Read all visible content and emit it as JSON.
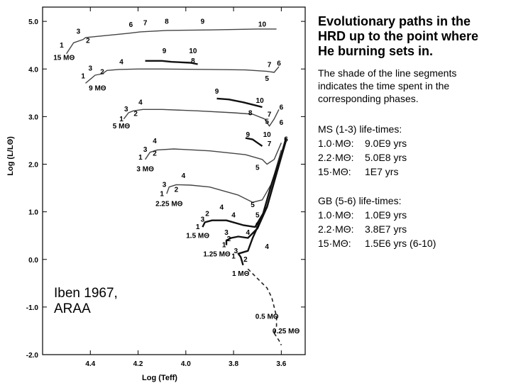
{
  "title": "Evolutionary paths in the\nHRD up to the point where\nHe burning sets in.",
  "note": "The shade of the line segments\nindicates the time spent in the\ncorresponding phases.",
  "ms_table": {
    "header": "MS (1-3) life-times:",
    "rows": [
      {
        "mass": "1.0·MΘ:",
        "value": "9.0E9 yrs"
      },
      {
        "mass": "2.2·MΘ:",
        "value": "5.0E8 yrs"
      },
      {
        "mass": "15·MΘ:",
        "value": "1E7 yrs"
      }
    ]
  },
  "gb_table": {
    "header": "GB (5-6) life-times:",
    "rows": [
      {
        "mass": "1.0·MΘ:",
        "value": "1.0E9 yrs"
      },
      {
        "mass": "2.2·MΘ:",
        "value": "3.8E7 yrs"
      },
      {
        "mass": "15·MΘ:",
        "value": "1.5E6 yrs (6-10)"
      }
    ]
  },
  "credit": "Iben 1967,\nARAA",
  "chart_data": {
    "type": "line",
    "xlabel": "Log (Teff)",
    "ylabel": "Log (L/LΘ)",
    "x_reversed": true,
    "xlim": [
      4.6,
      3.5
    ],
    "ylim": [
      -2.0,
      5.3
    ],
    "x_ticks": [
      4.4,
      4.2,
      4.0,
      3.8,
      3.6
    ],
    "x_tick_labels": [
      "4.4",
      "4.2",
      "4.0",
      "3.8",
      "3.6"
    ],
    "y_ticks": [
      5.0,
      4.0,
      3.0,
      2.0,
      1.0,
      0.0,
      -1.0,
      -2.0
    ],
    "y_tick_labels": [
      "5.0",
      "4.0",
      "3.0",
      "2.0",
      "1.0",
      "0.0",
      "-1.0",
      "-2.0"
    ],
    "series": [
      {
        "name": "15 MΘ",
        "points": [
          [
            4.5,
            4.32
          ],
          [
            4.47,
            4.55
          ],
          [
            4.43,
            4.62
          ],
          [
            4.42,
            4.66
          ],
          [
            4.36,
            4.69
          ],
          [
            4.24,
            4.75
          ],
          [
            4.19,
            4.78
          ],
          [
            4.08,
            4.81
          ],
          [
            3.9,
            4.82
          ],
          [
            3.7,
            4.84
          ],
          [
            3.62,
            4.84
          ]
        ]
      },
      {
        "name": "9 MΘ",
        "points": [
          [
            4.42,
            3.7
          ],
          [
            4.38,
            3.87
          ],
          [
            4.35,
            3.9
          ],
          [
            4.33,
            3.97
          ],
          [
            4.28,
            3.99
          ],
          [
            4.2,
            4.0
          ],
          [
            4.1,
            4.0
          ],
          [
            3.9,
            3.99
          ],
          [
            3.75,
            3.98
          ],
          [
            3.66,
            3.95
          ],
          [
            3.63,
            3.93
          ],
          [
            3.61,
            4.05
          ]
        ]
      },
      {
        "name": "9 MΘ (loop)",
        "shade": "dark",
        "points": [
          [
            4.17,
            4.17
          ],
          [
            4.1,
            4.17
          ],
          [
            4.06,
            4.15
          ],
          [
            3.98,
            4.13
          ],
          [
            3.95,
            4.1
          ]
        ]
      },
      {
        "name": "5 MΘ",
        "points": [
          [
            4.26,
            2.95
          ],
          [
            4.24,
            3.08
          ],
          [
            4.22,
            3.12
          ],
          [
            4.22,
            3.12
          ],
          [
            4.18,
            3.15
          ],
          [
            4.1,
            3.15
          ],
          [
            3.95,
            3.12
          ],
          [
            3.8,
            3.08
          ],
          [
            3.72,
            3.05
          ],
          [
            3.67,
            2.95
          ],
          [
            3.65,
            2.8
          ],
          [
            3.63,
            2.95
          ],
          [
            3.61,
            3.15
          ]
        ]
      },
      {
        "name": "5 MΘ (loop)",
        "shade": "dark",
        "points": [
          [
            3.87,
            3.38
          ],
          [
            3.82,
            3.36
          ],
          [
            3.76,
            3.3
          ],
          [
            3.72,
            3.25
          ],
          [
            3.68,
            3.2
          ]
        ]
      },
      {
        "name": "3 MΘ",
        "points": [
          [
            4.17,
            2.1
          ],
          [
            4.15,
            2.25
          ],
          [
            4.12,
            2.3
          ],
          [
            4.05,
            2.32
          ],
          [
            3.9,
            2.28
          ],
          [
            3.75,
            2.2
          ],
          [
            3.68,
            2.1
          ],
          [
            3.66,
            2.0
          ],
          [
            3.63,
            2.1
          ],
          [
            3.6,
            2.45
          ]
        ]
      },
      {
        "name": "3 MΘ (loop)",
        "shade": "dark",
        "points": [
          [
            3.75,
            2.55
          ],
          [
            3.72,
            2.52
          ],
          [
            3.7,
            2.45
          ],
          [
            3.68,
            2.38
          ]
        ]
      },
      {
        "name": "2.25 MΘ",
        "points": [
          [
            4.08,
            1.38
          ],
          [
            4.07,
            1.52
          ],
          [
            4.04,
            1.57
          ],
          [
            3.98,
            1.56
          ],
          [
            3.9,
            1.52
          ],
          [
            3.78,
            1.35
          ],
          [
            3.72,
            1.2
          ],
          [
            3.68,
            1.25
          ],
          [
            3.64,
            1.6
          ],
          [
            3.6,
            2.3
          ]
        ]
      },
      {
        "name": "1.5 MΘ",
        "shade": "dark",
        "points": [
          [
            3.93,
            0.68
          ],
          [
            3.92,
            0.78
          ],
          [
            3.89,
            0.82
          ],
          [
            3.83,
            0.82
          ],
          [
            3.76,
            0.72
          ],
          [
            3.71,
            0.68
          ],
          [
            3.66,
            1.1
          ],
          [
            3.61,
            2.0
          ],
          [
            3.58,
            2.55
          ]
        ]
      },
      {
        "name": "1.25 MΘ",
        "shade": "dark",
        "points": [
          [
            3.83,
            0.3
          ],
          [
            3.83,
            0.4
          ],
          [
            3.81,
            0.45
          ],
          [
            3.78,
            0.48
          ],
          [
            3.74,
            0.45
          ],
          [
            3.7,
            0.65
          ],
          [
            3.66,
            1.1
          ],
          [
            3.62,
            1.8
          ],
          [
            3.58,
            2.5
          ]
        ]
      },
      {
        "name": "1 MΘ",
        "shade": "dark",
        "points": [
          [
            3.76,
            -0.12
          ],
          [
            3.77,
            0.05
          ],
          [
            3.78,
            0.12
          ],
          [
            3.76,
            0.15
          ],
          [
            3.74,
            0.18
          ],
          [
            3.72,
            0.45
          ],
          [
            3.68,
            0.9
          ],
          [
            3.64,
            1.6
          ],
          [
            3.6,
            2.2
          ],
          [
            3.58,
            2.55
          ]
        ]
      },
      {
        "name": "0.5 MΘ",
        "dashed": true,
        "points": [
          [
            3.74,
            -0.2
          ],
          [
            3.7,
            -0.4
          ],
          [
            3.66,
            -0.6
          ],
          [
            3.64,
            -0.8
          ],
          [
            3.63,
            -1.0
          ],
          [
            3.62,
            -1.2
          ],
          [
            3.62,
            -1.4
          ],
          [
            3.63,
            -1.55
          ]
        ]
      },
      {
        "name": "0.25 MΘ",
        "dashed": true,
        "points": [
          [
            3.63,
            -1.55
          ],
          [
            3.61,
            -1.7
          ],
          [
            3.6,
            -1.8
          ]
        ]
      }
    ],
    "mass_labels": [
      {
        "text": "15 MΘ",
        "x": 4.51,
        "y": 4.19
      },
      {
        "text": "9 MΘ",
        "x": 4.37,
        "y": 3.55
      },
      {
        "text": "5 MΘ",
        "x": 4.27,
        "y": 2.75
      },
      {
        "text": "3 MΘ",
        "x": 4.17,
        "y": 1.85
      },
      {
        "text": "2.25 MΘ",
        "x": 4.07,
        "y": 1.12
      },
      {
        "text": "1.5 MΘ",
        "x": 3.95,
        "y": 0.45
      },
      {
        "text": "1.25 MΘ",
        "x": 3.87,
        "y": 0.06
      },
      {
        "text": "1 MΘ",
        "x": 3.77,
        "y": -0.35
      },
      {
        "text": "0.5 MΘ",
        "x": 3.66,
        "y": -1.25
      },
      {
        "text": "0.25 MΘ",
        "x": 3.58,
        "y": -1.55
      }
    ],
    "phase_labels": [
      {
        "text": "1",
        "x": 4.52,
        "y": 4.45
      },
      {
        "text": "2",
        "x": 4.41,
        "y": 4.55
      },
      {
        "text": "3",
        "x": 4.45,
        "y": 4.74
      },
      {
        "text": "6",
        "x": 4.23,
        "y": 4.88
      },
      {
        "text": "7",
        "x": 4.17,
        "y": 4.92
      },
      {
        "text": "8",
        "x": 4.08,
        "y": 4.95
      },
      {
        "text": "9",
        "x": 3.93,
        "y": 4.95
      },
      {
        "text": "10",
        "x": 3.68,
        "y": 4.89
      },
      {
        "text": "1",
        "x": 4.43,
        "y": 3.8
      },
      {
        "text": "3",
        "x": 4.4,
        "y": 3.97
      },
      {
        "text": "2",
        "x": 4.35,
        "y": 3.89
      },
      {
        "text": "4",
        "x": 4.27,
        "y": 4.1
      },
      {
        "text": "9",
        "x": 4.09,
        "y": 4.33
      },
      {
        "text": "10",
        "x": 3.97,
        "y": 4.33
      },
      {
        "text": "8",
        "x": 3.97,
        "y": 4.12
      },
      {
        "text": "7",
        "x": 3.65,
        "y": 4.04
      },
      {
        "text": "6",
        "x": 3.61,
        "y": 4.07
      },
      {
        "text": "5",
        "x": 3.66,
        "y": 3.75
      },
      {
        "text": "9",
        "x": 3.87,
        "y": 3.48
      },
      {
        "text": "10",
        "x": 3.69,
        "y": 3.29
      },
      {
        "text": "6",
        "x": 3.6,
        "y": 3.15
      },
      {
        "text": "8",
        "x": 3.73,
        "y": 3.03
      },
      {
        "text": "7",
        "x": 3.65,
        "y": 3.0
      },
      {
        "text": "5",
        "x": 3.66,
        "y": 2.85
      },
      {
        "text": "1",
        "x": 4.27,
        "y": 2.9
      },
      {
        "text": "3",
        "x": 4.25,
        "y": 3.11
      },
      {
        "text": "2",
        "x": 4.21,
        "y": 3.01
      },
      {
        "text": "4",
        "x": 4.19,
        "y": 3.25
      },
      {
        "text": "9",
        "x": 3.74,
        "y": 2.57
      },
      {
        "text": "10",
        "x": 3.66,
        "y": 2.57
      },
      {
        "text": "6",
        "x": 3.6,
        "y": 2.83
      },
      {
        "text": "7",
        "x": 3.65,
        "y": 2.38
      },
      {
        "text": "6",
        "x": 3.58,
        "y": 2.48
      },
      {
        "text": "1",
        "x": 4.19,
        "y": 2.1
      },
      {
        "text": "3",
        "x": 4.17,
        "y": 2.26
      },
      {
        "text": "2",
        "x": 4.13,
        "y": 2.18
      },
      {
        "text": "4",
        "x": 4.13,
        "y": 2.44
      },
      {
        "text": "5",
        "x": 3.7,
        "y": 1.88
      },
      {
        "text": "1",
        "x": 4.1,
        "y": 1.33
      },
      {
        "text": "3",
        "x": 4.09,
        "y": 1.52
      },
      {
        "text": "2",
        "x": 4.04,
        "y": 1.42
      },
      {
        "text": "4",
        "x": 4.01,
        "y": 1.71
      },
      {
        "text": "5",
        "x": 3.72,
        "y": 1.1
      },
      {
        "text": "4",
        "x": 3.85,
        "y": 1.05
      },
      {
        "text": "2",
        "x": 3.91,
        "y": 0.91
      },
      {
        "text": "3",
        "x": 3.93,
        "y": 0.79
      },
      {
        "text": "1",
        "x": 3.95,
        "y": 0.64
      },
      {
        "text": "4",
        "x": 3.8,
        "y": 0.88
      },
      {
        "text": "5",
        "x": 3.7,
        "y": 0.88
      },
      {
        "text": "5",
        "x": 3.7,
        "y": 0.67
      },
      {
        "text": "3",
        "x": 3.83,
        "y": 0.52
      },
      {
        "text": "2",
        "x": 3.82,
        "y": 0.38
      },
      {
        "text": "1",
        "x": 3.84,
        "y": 0.26
      },
      {
        "text": "4",
        "x": 3.74,
        "y": 0.52
      },
      {
        "text": "3",
        "x": 3.79,
        "y": 0.13
      },
      {
        "text": "1",
        "x": 3.8,
        "y": 0.02
      },
      {
        "text": "2",
        "x": 3.75,
        "y": -0.05
      },
      {
        "text": "4",
        "x": 3.66,
        "y": 0.22
      }
    ],
    "legend": "none",
    "grid": false
  }
}
